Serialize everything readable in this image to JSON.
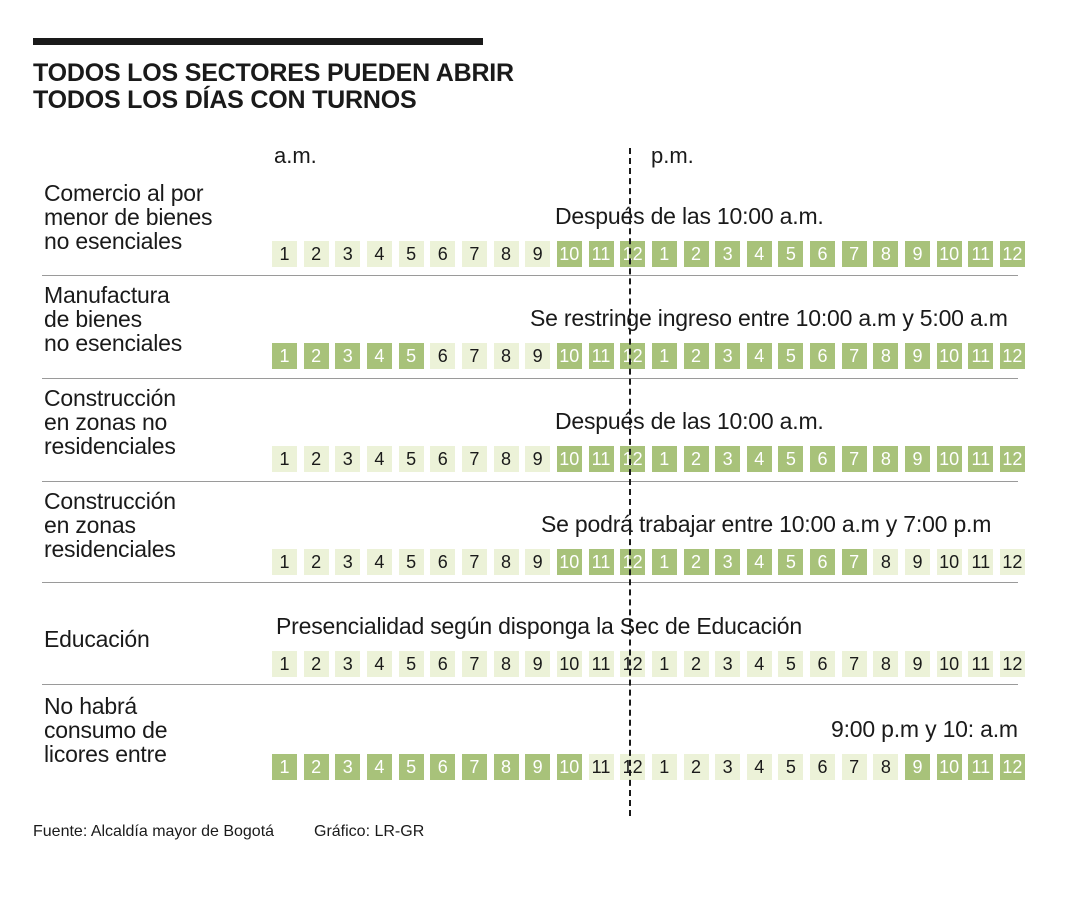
{
  "title": {
    "line1": "TODOS LOS SECTORES PUEDEN ABRIR",
    "line2": "TODOS LOS DÍAS CON TURNOS"
  },
  "periods": {
    "am": "a.m.",
    "pm": "p.m."
  },
  "hour_labels": [
    "1",
    "2",
    "3",
    "4",
    "5",
    "6",
    "7",
    "8",
    "9",
    "10",
    "11",
    "12",
    "1",
    "2",
    "3",
    "4",
    "5",
    "6",
    "7",
    "8",
    "9",
    "10",
    "11",
    "12"
  ],
  "colors": {
    "active": "#a8c27a",
    "inactive": "#ecf2d8"
  },
  "rows": [
    {
      "sector": [
        "Comercio al por",
        "menor de bienes",
        "no esenciales"
      ],
      "note": "Después de las 10:00 a.m.",
      "active": [
        0,
        0,
        0,
        0,
        0,
        0,
        0,
        0,
        0,
        1,
        1,
        1,
        1,
        1,
        1,
        1,
        1,
        1,
        1,
        1,
        1,
        1,
        1,
        1
      ]
    },
    {
      "sector": [
        "Manufactura",
        "de bienes",
        "no esenciales"
      ],
      "note": "Se restringe ingreso entre 10:00 a.m y 5:00 a.m",
      "active": [
        1,
        1,
        1,
        1,
        1,
        0,
        0,
        0,
        0,
        1,
        1,
        1,
        1,
        1,
        1,
        1,
        1,
        1,
        1,
        1,
        1,
        1,
        1,
        1
      ]
    },
    {
      "sector": [
        "Construcción",
        "en zonas no",
        "residenciales"
      ],
      "note": "Después de las 10:00 a.m.",
      "active": [
        0,
        0,
        0,
        0,
        0,
        0,
        0,
        0,
        0,
        1,
        1,
        1,
        1,
        1,
        1,
        1,
        1,
        1,
        1,
        1,
        1,
        1,
        1,
        1
      ]
    },
    {
      "sector": [
        "Construcción",
        "en zonas",
        "residenciales"
      ],
      "note": "Se podrá trabajar entre 10:00 a.m y 7:00 p.m",
      "active": [
        0,
        0,
        0,
        0,
        0,
        0,
        0,
        0,
        0,
        1,
        1,
        1,
        1,
        1,
        1,
        1,
        1,
        1,
        1,
        0,
        0,
        0,
        0,
        0
      ]
    },
    {
      "sector": [
        "Educación"
      ],
      "note": "Presencialidad según disponga la Sec de Educación",
      "active": [
        0,
        0,
        0,
        0,
        0,
        0,
        0,
        0,
        0,
        0,
        0,
        0,
        0,
        0,
        0,
        0,
        0,
        0,
        0,
        0,
        0,
        0,
        0,
        0
      ]
    },
    {
      "sector": [
        "No habrá",
        "consumo de",
        "licores entre"
      ],
      "note": "9:00 p.m y 10: a.m",
      "active": [
        1,
        1,
        1,
        1,
        1,
        1,
        1,
        1,
        1,
        1,
        0,
        0,
        0,
        0,
        0,
        0,
        0,
        0,
        0,
        0,
        1,
        1,
        1,
        1
      ]
    }
  ],
  "footer": {
    "source": "Fuente: Alcaldía mayor de Bogotá",
    "credit": "Gráfico: LR-GR"
  }
}
